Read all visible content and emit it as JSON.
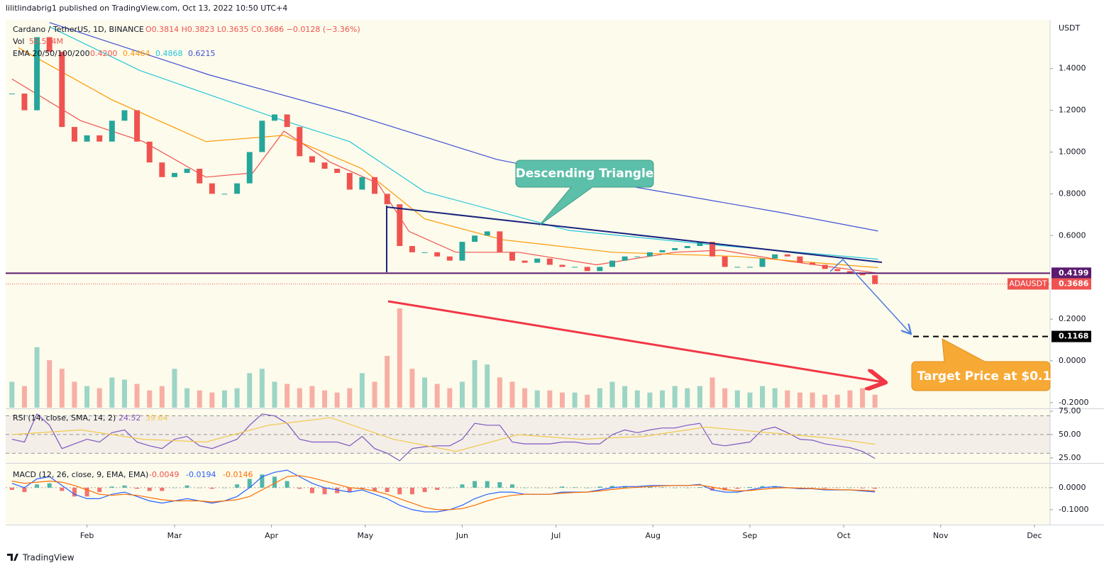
{
  "header": {
    "published": "lilitlindabrig1 published on TradingView.com, Oct 13, 2022 10:50 UTC+4"
  },
  "footer": {
    "brand": "TradingView"
  },
  "chart_data": [
    {
      "type": "candlestick",
      "symbol_legend": "Cardano / TetherUS, 1D, BINANCE",
      "ohlc_legend": "O0.3814 H0.3823 L0.3635 C0.3686 −0.0128 (−3.36%)",
      "volume_legend": "Vol",
      "volume_value": "55.524M",
      "ema_legend": "EMA 20/50/100/200",
      "axis_unit": "USDT",
      "annotations": [
        "Descending Triangle",
        "Target Price at $0.1"
      ],
      "xlim": [
        6,
        340
      ],
      "xticks": [
        {
          "value": 32,
          "label": "Feb"
        },
        {
          "value": 60,
          "label": "Mar"
        },
        {
          "value": 91,
          "label": "Apr"
        },
        {
          "value": 121,
          "label": "May"
        },
        {
          "value": 152,
          "label": "Jun"
        },
        {
          "value": 182,
          "label": "Jul"
        },
        {
          "value": 213,
          "label": "Aug"
        },
        {
          "value": 244,
          "label": "Sep"
        },
        {
          "value": 274,
          "label": "Oct"
        },
        {
          "value": 305,
          "label": "Nov"
        },
        {
          "value": 335,
          "label": "Dec"
        }
      ],
      "ylim": [
        -0.224,
        1.633
      ],
      "yticks": [
        {
          "value": 1.4,
          "label": "1.4000"
        },
        {
          "value": 1.2,
          "label": "1.2000"
        },
        {
          "value": 1.0,
          "label": "1.0000"
        },
        {
          "value": 0.8,
          "label": "0.8000"
        },
        {
          "value": 0.6,
          "label": "0.6000"
        },
        {
          "value": 0.2,
          "label": "0.2000"
        },
        {
          "value": 0,
          "label": "0.0000"
        },
        {
          "value": -0.2,
          "label": "-0.2000"
        }
      ],
      "grid": false,
      "up_color": "#26a69a",
      "down_color": "#ef5350",
      "x": [
        8,
        12,
        16,
        20,
        24,
        28,
        32,
        36,
        40,
        44,
        48,
        52,
        56,
        60,
        64,
        68,
        72,
        76,
        80,
        84,
        88,
        92,
        96,
        100,
        104,
        108,
        112,
        116,
        120,
        124,
        128,
        132,
        136,
        140,
        144,
        148,
        152,
        156,
        160,
        164,
        168,
        172,
        176,
        180,
        184,
        188,
        192,
        196,
        200,
        204,
        208,
        212,
        216,
        220,
        224,
        228,
        232,
        236,
        240,
        244,
        248,
        252,
        256,
        260,
        264,
        268,
        272,
        276,
        280,
        284
      ],
      "close": [
        1.28,
        1.2,
        1.55,
        1.48,
        1.12,
        1.05,
        1.08,
        1.05,
        1.15,
        1.2,
        1.05,
        0.95,
        0.88,
        0.9,
        0.92,
        0.85,
        0.8,
        0.8,
        0.85,
        1.0,
        1.15,
        1.18,
        1.12,
        0.98,
        0.95,
        0.92,
        0.9,
        0.82,
        0.88,
        0.8,
        0.75,
        0.55,
        0.52,
        0.52,
        0.5,
        0.48,
        0.57,
        0.6,
        0.62,
        0.52,
        0.48,
        0.47,
        0.49,
        0.46,
        0.45,
        0.45,
        0.43,
        0.45,
        0.48,
        0.5,
        0.5,
        0.52,
        0.53,
        0.54,
        0.55,
        0.57,
        0.5,
        0.45,
        0.45,
        0.45,
        0.49,
        0.51,
        0.5,
        0.47,
        0.46,
        0.44,
        0.43,
        0.42,
        0.41,
        0.3686
      ],
      "volume": [
        60,
        50,
        140,
        110,
        90,
        60,
        50,
        45,
        70,
        65,
        55,
        40,
        50,
        90,
        45,
        40,
        35,
        40,
        45,
        80,
        90,
        60,
        55,
        45,
        50,
        40,
        35,
        45,
        80,
        60,
        120,
        230,
        90,
        70,
        55,
        45,
        60,
        110,
        100,
        70,
        60,
        45,
        40,
        40,
        35,
        35,
        30,
        45,
        60,
        50,
        40,
        35,
        40,
        50,
        45,
        50,
        70,
        45,
        40,
        35,
        50,
        45,
        40,
        35,
        35,
        30,
        30,
        40,
        45,
        30
      ],
      "series": [
        {
          "color": "#ef5350",
          "value_label": "0.4200",
          "x": [
            8,
            30,
            50,
            70,
            85,
            95,
            110,
            125,
            135,
            150,
            170,
            195,
            220,
            235,
            255,
            270,
            285
          ],
          "values": [
            1.35,
            1.15,
            1.05,
            0.88,
            0.9,
            1.1,
            0.95,
            0.85,
            0.62,
            0.52,
            0.52,
            0.46,
            0.52,
            0.53,
            0.48,
            0.45,
            0.42
          ]
        },
        {
          "color": "#ff9800",
          "value_label": "0.4464",
          "x": [
            10,
            40,
            70,
            95,
            120,
            140,
            165,
            200,
            240,
            285
          ],
          "values": [
            1.5,
            1.25,
            1.05,
            1.08,
            0.92,
            0.68,
            0.58,
            0.52,
            0.5,
            0.4464
          ]
        },
        {
          "color": "#26c6da",
          "value_label": "0.4868",
          "x": [
            20,
            49,
            95,
            116,
            140,
            186,
            231,
            285
          ],
          "values": [
            1.6,
            1.39,
            1.15,
            1.05,
            0.81,
            0.625,
            0.557,
            0.4868
          ]
        },
        {
          "color": "#3f51d6",
          "value_label": "0.6215",
          "x": [
            20,
            71,
            116,
            163,
            208,
            254,
            285
          ],
          "values": [
            1.62,
            1.37,
            1.185,
            0.965,
            0.83,
            0.71,
            0.6215
          ]
        }
      ],
      "price_lines": [
        {
          "value": 0.4199,
          "label": "0.4199",
          "color": "#5b1a6e"
        },
        {
          "value": 0.3686,
          "label": "0.3686",
          "tag": "ADAUSDT",
          "color": "#ef5350"
        },
        {
          "value": 0.1168,
          "label": "0.1168",
          "color": "#000000"
        }
      ]
    },
    {
      "type": "rsi",
      "legend": "RSI (14, close, SMA, 14, 2)",
      "ylim": [
        20.4,
        76.5
      ],
      "yticks": [
        {
          "value": 75,
          "label": "75.00"
        },
        {
          "value": 50,
          "label": "50.00"
        },
        {
          "value": 25,
          "label": "25.00"
        }
      ],
      "levels": [
        70,
        50,
        30
      ],
      "series": [
        {
          "color": "#7e57c2",
          "value_label": "24.52",
          "values": [
            45,
            42,
            72,
            60,
            35,
            40,
            45,
            42,
            52,
            55,
            42,
            38,
            35,
            45,
            48,
            38,
            35,
            40,
            45,
            60,
            72,
            70,
            62,
            45,
            42,
            42,
            42,
            38,
            48,
            35,
            30,
            22,
            35,
            37,
            38,
            38,
            45,
            62,
            60,
            60,
            42,
            40,
            40,
            40,
            42,
            42,
            40,
            40,
            50,
            55,
            52,
            55,
            57,
            57,
            60,
            62,
            40,
            38,
            40,
            42,
            55,
            58,
            52,
            45,
            44,
            40,
            38,
            36,
            32,
            24.52
          ]
        },
        {
          "color": "#f2c94c",
          "value_label": "39.64",
          "x": [
            8,
            30,
            50,
            70,
            90,
            110,
            130,
            150,
            170,
            190,
            210,
            230,
            250,
            270,
            284
          ],
          "values": [
            50,
            55,
            45,
            42,
            60,
            68,
            45,
            32,
            50,
            45,
            48,
            58,
            52,
            46,
            39.64
          ]
        }
      ]
    },
    {
      "type": "macd",
      "legend": "MACD (12, 26, close, 9, EMA, EMA)",
      "ylim": [
        -0.168,
        0.106
      ],
      "yticks": [
        {
          "value": 0,
          "label": "0.0000"
        },
        {
          "value": -0.1,
          "label": "-0.1000"
        }
      ],
      "levels": [
        0
      ],
      "histogram": {
        "color": "#ef5350",
        "up_color": "#26a69a",
        "value_label": "-0.0049",
        "values": [
          -0.01,
          -0.02,
          0.015,
          0.02,
          -0.015,
          -0.04,
          -0.04,
          -0.02,
          0.005,
          0.01,
          -0.005,
          -0.015,
          -0.015,
          0.0,
          0.01,
          0.0,
          -0.005,
          0.0,
          0.015,
          0.04,
          0.06,
          0.05,
          0.03,
          -0.005,
          -0.025,
          -0.03,
          -0.025,
          -0.02,
          -0.005,
          -0.015,
          -0.02,
          -0.03,
          -0.03,
          -0.02,
          -0.01,
          0.0,
          0.015,
          0.03,
          0.03,
          0.025,
          0.015,
          0.0,
          0.0,
          0.0,
          0.005,
          0.002,
          0.0,
          0.005,
          0.008,
          0.007,
          0.003,
          0.005,
          0.002,
          0.0,
          0.0,
          0.003,
          -0.013,
          -0.012,
          -0.005,
          0.003,
          0.007,
          0.007,
          0.0,
          -0.003,
          -0.001,
          -0.003,
          -0.001,
          0.0,
          -0.003,
          -0.0049
        ]
      },
      "series": [
        {
          "color": "#2962ff",
          "value_label": "-0.0194",
          "values": [
            0.02,
            0.0,
            0.04,
            0.05,
            0.01,
            -0.03,
            -0.05,
            -0.05,
            -0.03,
            -0.02,
            -0.04,
            -0.06,
            -0.07,
            -0.06,
            -0.05,
            -0.06,
            -0.07,
            -0.06,
            -0.04,
            0.0,
            0.05,
            0.07,
            0.08,
            0.05,
            0.02,
            0.0,
            -0.01,
            -0.02,
            -0.01,
            -0.03,
            -0.05,
            -0.08,
            -0.1,
            -0.11,
            -0.11,
            -0.1,
            -0.08,
            -0.05,
            -0.03,
            -0.02,
            -0.02,
            -0.03,
            -0.03,
            -0.03,
            -0.02,
            -0.02,
            -0.02,
            -0.01,
            0.0,
            0.005,
            0.005,
            0.01,
            0.01,
            0.01,
            0.01,
            0.015,
            -0.01,
            -0.02,
            -0.02,
            -0.01,
            0.0,
            0.005,
            0.0,
            -0.005,
            -0.005,
            -0.01,
            -0.01,
            -0.01,
            -0.015,
            -0.0194
          ]
        },
        {
          "color": "#ff6d00",
          "value_label": "-0.0146",
          "values": [
            0.03,
            0.02,
            0.025,
            0.03,
            0.025,
            0.01,
            -0.01,
            -0.03,
            -0.035,
            -0.03,
            -0.035,
            -0.045,
            -0.055,
            -0.06,
            -0.06,
            -0.06,
            -0.065,
            -0.06,
            -0.055,
            -0.04,
            -0.01,
            0.02,
            0.05,
            0.055,
            0.045,
            0.03,
            0.015,
            0.0,
            -0.005,
            -0.015,
            -0.03,
            -0.05,
            -0.07,
            -0.09,
            -0.1,
            -0.1,
            -0.095,
            -0.08,
            -0.06,
            -0.045,
            -0.035,
            -0.03,
            -0.03,
            -0.03,
            -0.025,
            -0.022,
            -0.02,
            -0.015,
            -0.008,
            -0.002,
            0.002,
            0.005,
            0.008,
            0.01,
            0.01,
            0.012,
            0.003,
            -0.008,
            -0.015,
            -0.013,
            -0.007,
            -0.002,
            0.0,
            -0.002,
            -0.004,
            -0.007,
            -0.009,
            -0.01,
            -0.012,
            -0.0146
          ]
        }
      ]
    }
  ]
}
